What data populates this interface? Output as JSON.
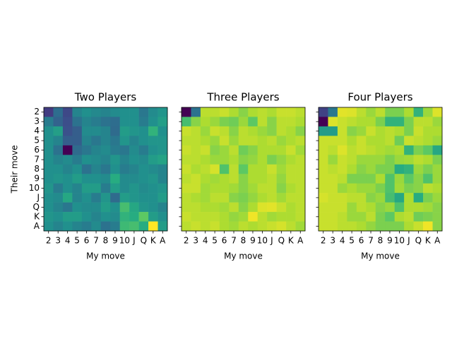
{
  "chart_data": {
    "type": "heatmap",
    "colormap": "viridis",
    "value_range": [
      0,
      1
    ],
    "shared_ylabel": "Their move",
    "row_labels": [
      "2",
      "3",
      "4",
      "5",
      "6",
      "7",
      "8",
      "9",
      "10",
      "J",
      "Q",
      "K",
      "A"
    ],
    "col_labels": [
      "2",
      "3",
      "4",
      "5",
      "6",
      "7",
      "8",
      "9",
      "10",
      "J",
      "Q",
      "K",
      "A"
    ],
    "panels": [
      {
        "title": "Two Players",
        "xlabel": "My move",
        "matrix": [
          [
            0.18,
            0.36,
            0.22,
            0.45,
            0.5,
            0.47,
            0.45,
            0.48,
            0.5,
            0.5,
            0.4,
            0.48,
            0.52
          ],
          [
            0.42,
            0.32,
            0.24,
            0.38,
            0.45,
            0.42,
            0.38,
            0.36,
            0.5,
            0.5,
            0.42,
            0.5,
            0.56
          ],
          [
            0.5,
            0.56,
            0.25,
            0.3,
            0.48,
            0.48,
            0.45,
            0.35,
            0.55,
            0.52,
            0.5,
            0.65,
            0.5
          ],
          [
            0.5,
            0.45,
            0.3,
            0.3,
            0.45,
            0.4,
            0.45,
            0.4,
            0.52,
            0.45,
            0.5,
            0.52,
            0.52
          ],
          [
            0.5,
            0.38,
            0.0,
            0.35,
            0.4,
            0.45,
            0.48,
            0.42,
            0.4,
            0.48,
            0.42,
            0.5,
            0.52
          ],
          [
            0.5,
            0.45,
            0.48,
            0.42,
            0.5,
            0.48,
            0.45,
            0.52,
            0.45,
            0.5,
            0.48,
            0.55,
            0.58
          ],
          [
            0.5,
            0.5,
            0.45,
            0.5,
            0.38,
            0.45,
            0.4,
            0.5,
            0.42,
            0.45,
            0.5,
            0.48,
            0.45
          ],
          [
            0.5,
            0.52,
            0.5,
            0.55,
            0.5,
            0.5,
            0.48,
            0.62,
            0.48,
            0.48,
            0.5,
            0.52,
            0.45
          ],
          [
            0.52,
            0.42,
            0.5,
            0.45,
            0.55,
            0.55,
            0.42,
            0.55,
            0.48,
            0.52,
            0.48,
            0.5,
            0.52
          ],
          [
            0.5,
            0.48,
            0.6,
            0.45,
            0.5,
            0.42,
            0.52,
            0.35,
            0.55,
            0.52,
            0.5,
            0.5,
            0.55
          ],
          [
            0.5,
            0.45,
            0.4,
            0.5,
            0.48,
            0.48,
            0.55,
            0.5,
            0.7,
            0.6,
            0.52,
            0.5,
            0.45
          ],
          [
            0.52,
            0.5,
            0.55,
            0.55,
            0.5,
            0.45,
            0.5,
            0.48,
            0.65,
            0.62,
            0.75,
            0.55,
            0.5
          ],
          [
            0.5,
            0.45,
            0.5,
            0.45,
            0.42,
            0.48,
            0.38,
            0.42,
            0.68,
            0.7,
            0.62,
            1.0,
            0.55
          ]
        ]
      },
      {
        "title": "Three Players",
        "xlabel": "My move",
        "matrix": [
          [
            0.0,
            0.38,
            0.9,
            0.9,
            0.92,
            0.88,
            0.82,
            0.88,
            0.9,
            0.88,
            0.92,
            0.92,
            0.9
          ],
          [
            0.7,
            0.82,
            0.88,
            0.85,
            0.8,
            0.78,
            0.85,
            0.75,
            0.9,
            0.82,
            0.9,
            0.9,
            0.88
          ],
          [
            0.92,
            0.9,
            0.85,
            0.92,
            0.9,
            0.82,
            0.9,
            0.88,
            0.85,
            0.82,
            0.9,
            0.88,
            0.82
          ],
          [
            0.9,
            0.9,
            0.88,
            0.85,
            0.92,
            0.85,
            0.9,
            0.9,
            0.88,
            0.9,
            0.85,
            0.88,
            0.9
          ],
          [
            0.92,
            0.9,
            0.92,
            0.82,
            0.85,
            0.9,
            0.78,
            0.82,
            0.88,
            0.88,
            0.88,
            0.92,
            0.86
          ],
          [
            0.9,
            0.9,
            0.88,
            0.85,
            0.85,
            0.88,
            0.82,
            0.84,
            0.88,
            0.8,
            0.84,
            0.88,
            0.9
          ],
          [
            0.92,
            0.88,
            0.9,
            0.94,
            0.72,
            0.9,
            0.75,
            0.88,
            0.88,
            0.92,
            0.86,
            0.9,
            0.9
          ],
          [
            0.9,
            0.92,
            0.88,
            0.86,
            0.88,
            0.9,
            0.82,
            0.88,
            0.88,
            0.9,
            0.84,
            0.9,
            0.9
          ],
          [
            0.92,
            0.92,
            0.86,
            0.88,
            0.88,
            0.86,
            0.82,
            0.86,
            0.9,
            0.9,
            0.82,
            0.88,
            0.9
          ],
          [
            0.9,
            0.88,
            0.86,
            0.9,
            0.9,
            0.82,
            0.8,
            0.84,
            0.88,
            0.9,
            0.86,
            0.9,
            0.9
          ],
          [
            0.9,
            0.9,
            0.88,
            0.88,
            0.86,
            0.9,
            0.82,
            0.88,
            0.95,
            0.96,
            0.92,
            0.88,
            0.9
          ],
          [
            0.92,
            0.9,
            0.9,
            0.9,
            0.88,
            0.84,
            0.86,
            0.98,
            0.9,
            0.86,
            0.88,
            0.88,
            0.9
          ],
          [
            0.9,
            0.92,
            0.9,
            0.92,
            0.88,
            0.86,
            0.9,
            0.88,
            0.9,
            0.92,
            0.94,
            0.9,
            0.86
          ]
        ]
      },
      {
        "title": "Four Players",
        "xlabel": "My move",
        "matrix": [
          [
            0.2,
            0.4,
            0.96,
            0.95,
            0.9,
            0.85,
            0.9,
            0.8,
            0.8,
            0.88,
            0.65,
            0.85,
            0.95
          ],
          [
            0.0,
            0.95,
            0.92,
            0.9,
            0.88,
            0.88,
            0.8,
            0.65,
            0.65,
            0.8,
            0.9,
            0.9,
            0.85
          ],
          [
            0.55,
            0.55,
            0.92,
            0.82,
            0.85,
            0.92,
            0.88,
            0.9,
            0.88,
            0.8,
            0.92,
            0.88,
            0.88
          ],
          [
            0.92,
            0.92,
            0.92,
            0.88,
            0.92,
            0.88,
            0.88,
            0.9,
            0.78,
            0.92,
            0.9,
            0.88,
            0.85
          ],
          [
            0.92,
            0.9,
            0.95,
            0.9,
            0.92,
            0.9,
            0.88,
            0.86,
            0.88,
            0.65,
            0.8,
            0.75,
            0.6
          ],
          [
            0.92,
            0.85,
            0.92,
            0.9,
            0.85,
            0.85,
            0.85,
            0.8,
            0.85,
            0.86,
            0.9,
            0.88,
            0.8
          ],
          [
            0.92,
            0.9,
            0.92,
            0.88,
            0.82,
            0.85,
            0.8,
            0.8,
            0.62,
            0.65,
            0.85,
            0.8,
            0.85
          ],
          [
            0.92,
            0.92,
            0.9,
            0.8,
            0.8,
            0.8,
            0.88,
            0.72,
            0.85,
            0.75,
            0.82,
            0.72,
            0.85
          ],
          [
            0.92,
            0.92,
            0.85,
            0.88,
            0.85,
            0.85,
            0.8,
            0.72,
            0.86,
            0.8,
            0.82,
            0.9,
            0.88
          ],
          [
            0.94,
            0.92,
            0.92,
            0.9,
            0.9,
            0.82,
            0.85,
            0.7,
            0.6,
            0.88,
            0.62,
            0.8,
            0.85
          ],
          [
            0.92,
            0.92,
            0.92,
            0.85,
            0.9,
            0.88,
            0.82,
            0.85,
            0.72,
            0.88,
            0.88,
            0.86,
            0.82
          ],
          [
            0.92,
            0.92,
            0.9,
            0.85,
            0.85,
            0.9,
            0.8,
            0.75,
            0.88,
            0.9,
            0.78,
            0.8,
            0.82
          ],
          [
            0.92,
            0.92,
            0.9,
            0.9,
            0.88,
            0.84,
            0.8,
            0.8,
            0.8,
            0.88,
            0.92,
            0.98,
            0.82
          ]
        ]
      }
    ]
  }
}
